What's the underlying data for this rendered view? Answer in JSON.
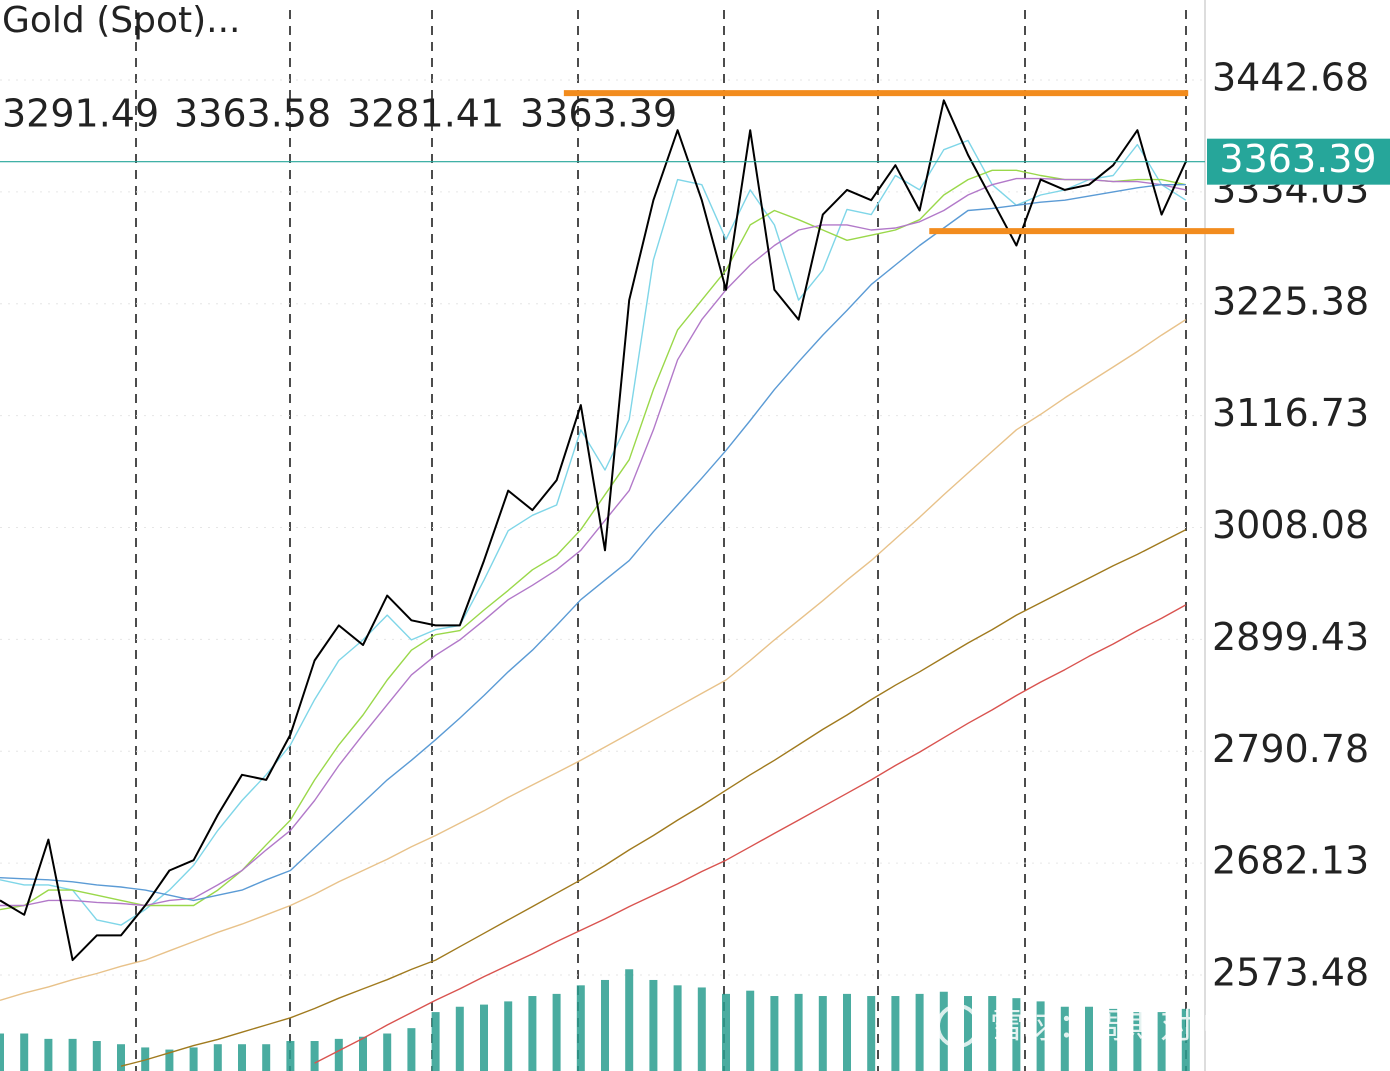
{
  "chart_data": {
    "type": "line",
    "title": "Gold (Spot)...",
    "ohlc": [
      3291.49,
      3363.58,
      3281.41,
      3363.39
    ],
    "current_price": 3363.39,
    "current_price_color": "#26a69a",
    "watermark": "雪球：周期对冲趋势",
    "ylim": [
      2480.3,
      3520.4
    ],
    "yticks": [
      3442.68,
      3334.03,
      3225.38,
      3116.73,
      3008.08,
      2899.43,
      2790.78,
      2682.13,
      2573.48
    ],
    "grid": true,
    "series": [
      {
        "color": "#000000",
        "values": [
          2646,
          2632,
          2705,
          2588,
          2612,
          2612,
          2641,
          2675,
          2685,
          2729,
          2768,
          2763,
          2807,
          2879,
          2913,
          2894,
          2942,
          2918,
          2913,
          2913,
          2976,
          3044,
          3025,
          3054,
          3127,
          2986,
          3229,
          3326,
          3394,
          3326,
          3239,
          3394,
          3239,
          3210,
          3312,
          3336,
          3326,
          3360,
          3316,
          3423,
          3370,
          3326,
          3282,
          3346,
          3336,
          3341,
          3360,
          3394,
          3312,
          3363.39
        ]
      },
      {
        "color": "#7fd6e8",
        "values": [
          2666,
          2661,
          2661,
          2656,
          2627,
          2622,
          2637,
          2656,
          2680,
          2714,
          2743,
          2768,
          2797,
          2841,
          2879,
          2899,
          2923,
          2899,
          2909,
          2913,
          2957,
          3005,
          3020,
          3030,
          3103,
          3064,
          3113,
          3268,
          3346,
          3341,
          3288,
          3336,
          3302,
          3229,
          3258,
          3317,
          3312,
          3350,
          3336,
          3375,
          3384,
          3341,
          3321,
          3331,
          3336,
          3346,
          3350,
          3380,
          3341,
          3326
        ]
      },
      {
        "color": "#9ad84a",
        "values": [
          2637,
          2641,
          2656,
          2656,
          2651,
          2646,
          2641,
          2641,
          2641,
          2656,
          2675,
          2700,
          2724,
          2763,
          2797,
          2826,
          2860,
          2889,
          2904,
          2908,
          2928,
          2947,
          2967,
          2981,
          3006,
          3040,
          3074,
          3142,
          3200,
          3229,
          3258,
          3302,
          3316,
          3307,
          3297,
          3287,
          3292,
          3297,
          3307,
          3331,
          3346,
          3355,
          3355,
          3350,
          3346,
          3346,
          3344,
          3346,
          3346,
          3341
        ]
      },
      {
        "color": "#b279c9",
        "values": [
          2641,
          2641,
          2646,
          2646,
          2644,
          2643,
          2641,
          2646,
          2648,
          2661,
          2675,
          2695,
          2714,
          2743,
          2777,
          2807,
          2836,
          2865,
          2884,
          2899,
          2918,
          2938,
          2952,
          2967,
          2986,
          3015,
          3044,
          3103,
          3171,
          3210,
          3239,
          3263,
          3282,
          3297,
          3302,
          3302,
          3297,
          3299,
          3305,
          3316,
          3331,
          3341,
          3347,
          3347,
          3346,
          3346,
          3344,
          3344,
          3341,
          3336
        ]
      },
      {
        "color": "#5b9bd5",
        "values": [
          2668,
          2667,
          2666,
          2664,
          2661,
          2659,
          2656,
          2651,
          2646,
          2651,
          2656,
          2666,
          2675,
          2697,
          2719,
          2741,
          2763,
          2782,
          2802,
          2823,
          2845,
          2868,
          2889,
          2913,
          2938,
          2957,
          2976,
          3004,
          3030,
          3056,
          3083,
          3112,
          3142,
          3169,
          3195,
          3219,
          3244,
          3263,
          3282,
          3299,
          3316,
          3318,
          3321,
          3324,
          3326,
          3330,
          3334,
          3338,
          3341,
          3341
        ]
      },
      {
        "color": "#e8c28a",
        "values": [
          2549,
          2556,
          2562,
          2569,
          2575,
          2582,
          2588,
          2597,
          2606,
          2615,
          2623,
          2632,
          2641,
          2652,
          2664,
          2675,
          2686,
          2698,
          2709,
          2721,
          2733,
          2746,
          2758,
          2770,
          2782,
          2795,
          2808,
          2821,
          2834,
          2847,
          2860,
          2879,
          2899,
          2918,
          2937,
          2957,
          2976,
          2997,
          3018,
          3040,
          3061,
          3082,
          3103,
          3118,
          3134,
          3149,
          3164,
          3179,
          3195,
          3210
        ]
      },
      {
        "color": "#a07a1e",
        "values": [
          null,
          null,
          null,
          null,
          null,
          2485,
          2491,
          2498,
          2505,
          2511,
          2518,
          2525,
          2532,
          2541,
          2551,
          2560,
          2569,
          2579,
          2588,
          2601,
          2614,
          2627,
          2640,
          2653,
          2666,
          2680,
          2695,
          2709,
          2724,
          2738,
          2753,
          2768,
          2782,
          2797,
          2812,
          2826,
          2841,
          2855,
          2868,
          2882,
          2896,
          2909,
          2923,
          2935,
          2947,
          2959,
          2971,
          2982,
          2994,
          3006
        ]
      },
      {
        "color": "#d9534f",
        "values": [
          null,
          null,
          null,
          null,
          null,
          null,
          null,
          null,
          null,
          null,
          null,
          null,
          null,
          2488,
          2500,
          2512,
          2525,
          2537,
          2549,
          2560,
          2572,
          2583,
          2594,
          2606,
          2617,
          2628,
          2640,
          2651,
          2662,
          2674,
          2685,
          2698,
          2711,
          2724,
          2737,
          2750,
          2763,
          2777,
          2790,
          2804,
          2818,
          2831,
          2845,
          2858,
          2870,
          2883,
          2895,
          2908,
          2920,
          2933
        ]
      }
    ],
    "volume": {
      "color": "#2a9d8f",
      "values": [
        35,
        35,
        30,
        30,
        28,
        25,
        22,
        20,
        22,
        25,
        25,
        25,
        28,
        28,
        30,
        32,
        35,
        40,
        55,
        60,
        62,
        65,
        70,
        72,
        80,
        85,
        95,
        85,
        80,
        78,
        72,
        75,
        70,
        72,
        70,
        72,
        70,
        70,
        72,
        74,
        70,
        70,
        68,
        65,
        60,
        60,
        58,
        55,
        55,
        58
      ]
    },
    "y2lim": [
      0,
      1000
    ],
    "hlines": [
      {
        "value": 3430,
        "from": 23.3,
        "to": 49.1,
        "color": "#f28c1e"
      },
      {
        "value": 3296,
        "from": 38.4,
        "to": 51.0,
        "color": "#f28c1e"
      }
    ]
  }
}
